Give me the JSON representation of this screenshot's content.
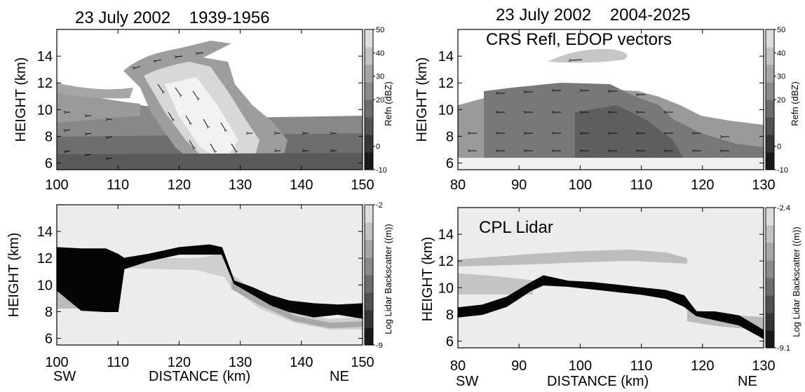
{
  "chart_data": [
    {
      "type": "heatmap",
      "panel": "top-left",
      "title": "23 July 2002    1939-1956",
      "ylabel": "HEIGHT (km)",
      "xlabel": "",
      "xlim": [
        100,
        150
      ],
      "ylim": [
        5.5,
        16
      ],
      "xticks": [
        "100",
        "110",
        "120",
        "130",
        "140",
        "150"
      ],
      "yticks": [
        "6",
        "8",
        "10",
        "12",
        "14"
      ],
      "colorbar": {
        "label": "Refn (dBZ)",
        "ticks": [
          "50",
          "40",
          "30",
          "20",
          "0",
          "-10"
        ],
        "range": [
          -10,
          50
        ]
      },
      "features": {
        "stratiform_layer": {
          "x": [
            100,
            150
          ],
          "base_km": 6,
          "top_km": 9.5
        },
        "anvil": {
          "x": [
            100,
            118
          ],
          "base_km": 10,
          "top_km": 12
        },
        "convective_core": {
          "x": [
            112,
            136
          ],
          "base_km": 6,
          "top_km": 15.5
        }
      },
      "overlay": "velocity vectors"
    },
    {
      "type": "heatmap",
      "panel": "top-right",
      "title": "23 July 2002    2004-2025",
      "annotation": "CRS Refl, EDOP vectors",
      "ylabel": "HEIGHT (km)",
      "xlabel": "",
      "xlim": [
        80,
        130
      ],
      "ylim": [
        5.5,
        16
      ],
      "xticks": [
        "80",
        "90",
        "100",
        "110",
        "120",
        "130"
      ],
      "yticks": [
        "6",
        "8",
        "10",
        "12",
        "14"
      ],
      "colorbar": {
        "label": "Refn (dBZ)",
        "ticks": [
          "50",
          "40",
          "30",
          "20",
          "0",
          "-10"
        ],
        "range": [
          -10,
          50
        ]
      },
      "features": {
        "upper_cloud": {
          "x": [
            97,
            111
          ],
          "base_km": 13.9,
          "top_km": 14.6
        },
        "anvil": {
          "x": [
            80,
            130
          ],
          "base_km": 6.5,
          "top_km": 12.5
        },
        "core": {
          "x": [
            99,
            127
          ],
          "base_km": 5.8,
          "top_km": 11.5
        }
      },
      "overlay": "velocity vectors"
    },
    {
      "type": "heatmap",
      "panel": "bottom-left",
      "title": "",
      "ylabel": "HEIGHT (km)",
      "xlabel": "DISTANCE (km)",
      "left_label": "SW",
      "right_label": "NE",
      "xlim": [
        100,
        150
      ],
      "ylim": [
        5.5,
        16
      ],
      "xticks": [
        "100",
        "110",
        "120",
        "130",
        "140",
        "150"
      ],
      "yticks": [
        "6",
        "8",
        "10",
        "12",
        "14"
      ],
      "colorbar": {
        "label": "Log Lidar Backscatter ((m))",
        "ticks": [
          "-2",
          "-9"
        ],
        "range": [
          -9,
          -2
        ]
      },
      "attenuation_edge": [
        {
          "x": 100,
          "top": 12.8,
          "bottom": 9.6
        },
        {
          "x": 104,
          "top": 12.7,
          "bottom": 8.1
        },
        {
          "x": 108,
          "top": 12.7,
          "bottom": 8.0
        },
        {
          "x": 110,
          "top": 12.3,
          "bottom": 8.0
        },
        {
          "x": 111,
          "top": 12.0,
          "bottom": 11.2
        },
        {
          "x": 115,
          "top": 12.3,
          "bottom": 11.8
        },
        {
          "x": 120,
          "top": 12.8,
          "bottom": 12.3
        },
        {
          "x": 125,
          "top": 13.0,
          "bottom": 12.3
        },
        {
          "x": 127,
          "top": 12.8,
          "bottom": 12.3
        },
        {
          "x": 129,
          "top": 10.3,
          "bottom": 10.1
        },
        {
          "x": 132,
          "top": 9.8,
          "bottom": 9.3
        },
        {
          "x": 135,
          "top": 9.2,
          "bottom": 8.5
        },
        {
          "x": 138,
          "top": 8.8,
          "bottom": 8.0
        },
        {
          "x": 142,
          "top": 8.6,
          "bottom": 7.6
        },
        {
          "x": 146,
          "top": 8.5,
          "bottom": 7.8
        },
        {
          "x": 150,
          "top": 8.6,
          "bottom": 7.5
        }
      ]
    },
    {
      "type": "heatmap",
      "panel": "bottom-right",
      "title": "",
      "annotation": "CPL Lidar",
      "ylabel": "HEIGHT (km)",
      "xlabel": "DISTANCE (km)",
      "left_label": "SW",
      "right_label": "NE",
      "xlim": [
        80,
        130
      ],
      "ylim": [
        5.5,
        16
      ],
      "xticks": [
        "80",
        "90",
        "100",
        "110",
        "120",
        "130"
      ],
      "yticks": [
        "6",
        "8",
        "10",
        "12",
        "14"
      ],
      "colorbar": {
        "label": "Log Lidar Backscatter ((m))",
        "ticks": [
          "-2.4",
          "-9.1"
        ],
        "range": [
          -9.1,
          -2.4
        ]
      },
      "attenuation_edge": [
        {
          "x": 80,
          "top": 8.5,
          "bottom": 7.8
        },
        {
          "x": 84,
          "top": 8.7,
          "bottom": 8.0
        },
        {
          "x": 88,
          "top": 9.3,
          "bottom": 8.6
        },
        {
          "x": 92,
          "top": 10.4,
          "bottom": 9.8
        },
        {
          "x": 94,
          "top": 10.9,
          "bottom": 10.2
        },
        {
          "x": 98,
          "top": 10.5,
          "bottom": 10.1
        },
        {
          "x": 102,
          "top": 10.4,
          "bottom": 9.9
        },
        {
          "x": 106,
          "top": 10.2,
          "bottom": 9.7
        },
        {
          "x": 110,
          "top": 10.0,
          "bottom": 9.5
        },
        {
          "x": 114,
          "top": 9.8,
          "bottom": 9.2
        },
        {
          "x": 117,
          "top": 9.4,
          "bottom": 8.6
        },
        {
          "x": 119,
          "top": 8.2,
          "bottom": 7.9
        },
        {
          "x": 122,
          "top": 8.2,
          "bottom": 7.6
        },
        {
          "x": 126,
          "top": 7.9,
          "bottom": 7.2
        },
        {
          "x": 130,
          "top": 6.8,
          "bottom": 6.2
        }
      ]
    }
  ]
}
